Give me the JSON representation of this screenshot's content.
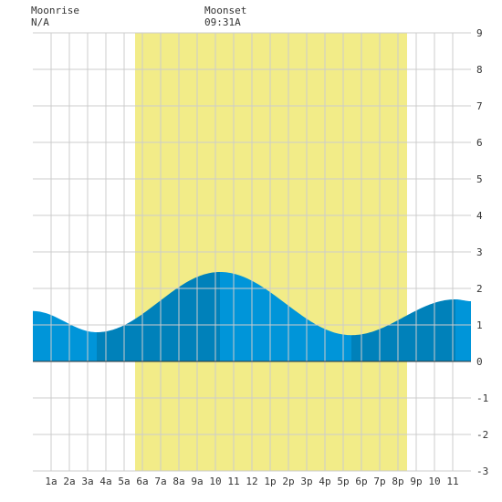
{
  "moonrise": {
    "label": "Moonrise",
    "value": "N/A"
  },
  "moonset": {
    "label": "Moonset",
    "value": "09:31A"
  },
  "chart_data": {
    "type": "area",
    "title": "",
    "xlabel": "",
    "ylabel": "",
    "ylim": [
      -3,
      9
    ],
    "yticks": [
      -3,
      -2,
      -1,
      0,
      1,
      2,
      3,
      4,
      5,
      6,
      7,
      8,
      9
    ],
    "xlim": [
      0,
      24
    ],
    "xticks": [
      {
        "x": 1,
        "label": "1a"
      },
      {
        "x": 2,
        "label": "2a"
      },
      {
        "x": 3,
        "label": "3a"
      },
      {
        "x": 4,
        "label": "4a"
      },
      {
        "x": 5,
        "label": "5a"
      },
      {
        "x": 6,
        "label": "6a"
      },
      {
        "x": 7,
        "label": "7a"
      },
      {
        "x": 8,
        "label": "8a"
      },
      {
        "x": 9,
        "label": "9a"
      },
      {
        "x": 10,
        "label": "10"
      },
      {
        "x": 11,
        "label": "11"
      },
      {
        "x": 12,
        "label": "12"
      },
      {
        "x": 13,
        "label": "1p"
      },
      {
        "x": 14,
        "label": "2p"
      },
      {
        "x": 15,
        "label": "3p"
      },
      {
        "x": 16,
        "label": "4p"
      },
      {
        "x": 17,
        "label": "5p"
      },
      {
        "x": 18,
        "label": "6p"
      },
      {
        "x": 19,
        "label": "7p"
      },
      {
        "x": 20,
        "label": "8p"
      },
      {
        "x": 21,
        "label": "9p"
      },
      {
        "x": 22,
        "label": "10"
      },
      {
        "x": 23,
        "label": "11"
      }
    ],
    "daylight": {
      "start": 5.6,
      "end": 20.5
    },
    "tide_extrema": [
      {
        "x": 0.0,
        "y": 1.38
      },
      {
        "x": 3.5,
        "y": 0.8
      },
      {
        "x": 10.25,
        "y": 2.45
      },
      {
        "x": 17.45,
        "y": 0.72
      },
      {
        "x": 23.15,
        "y": 1.7
      },
      {
        "x": 24.0,
        "y": 1.65
      }
    ],
    "shade_boundaries": [
      3.5,
      10.25,
      17.45,
      23.15
    ],
    "grid": true,
    "colors": {
      "daylight": "#f2ec88",
      "tide_light": "#0095d9",
      "tide_dark": "#0081ba",
      "grid": "#cccccc",
      "axis": "#333333"
    }
  }
}
